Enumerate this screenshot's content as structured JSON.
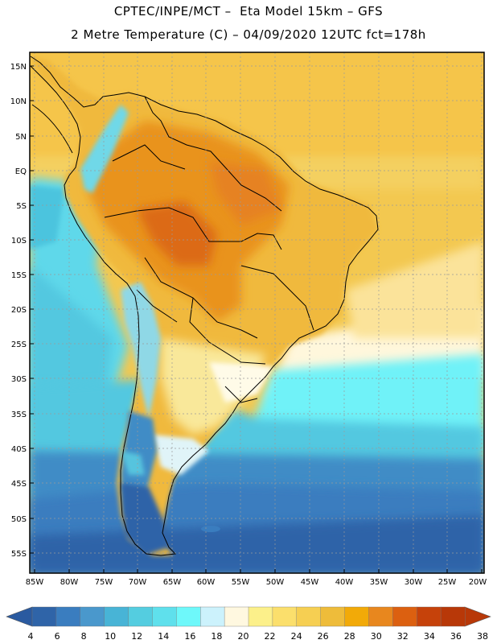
{
  "header": {
    "line1": "CPTEC/INPE/MCT –  Eta Model 15km – GFS",
    "line2": "2 Metre Temperature (C) – 04/09/2020 12UTC fct=178h"
  },
  "map": {
    "lat_labels": [
      "15N",
      "10N",
      "5N",
      "EQ",
      "5S",
      "10S",
      "15S",
      "20S",
      "25S",
      "30S",
      "35S",
      "40S",
      "45S",
      "50S",
      "55S"
    ],
    "lon_labels": [
      "85W",
      "80W",
      "75W",
      "70W",
      "65W",
      "60W",
      "55W",
      "50W",
      "45W",
      "40W",
      "35W",
      "30W",
      "25W",
      "20W"
    ]
  },
  "colorbar": {
    "ticks": [
      "4",
      "6",
      "8",
      "10",
      "12",
      "14",
      "16",
      "18",
      "20",
      "22",
      "24",
      "26",
      "28",
      "30",
      "32",
      "34",
      "36",
      "38"
    ],
    "colors": [
      "#2f64a8",
      "#3a7dbf",
      "#4a98cc",
      "#48b4d6",
      "#54cde0",
      "#5fe0ec",
      "#6ef8fa",
      "#ccf2fc",
      "#fff8e0",
      "#fcf08a",
      "#fbdf6c",
      "#f6cf52",
      "#eebc3a",
      "#f2aa08",
      "#e8871e",
      "#dc6010",
      "#c6420a",
      "#b83808"
    ]
  },
  "colors": {
    "ocean_deep": "#2a5aa0",
    "ocean_mid": "#3d88c4",
    "ocean_cyan": "#5ed8ea",
    "warm": "#f3c850",
    "hot": "#e88a22"
  }
}
